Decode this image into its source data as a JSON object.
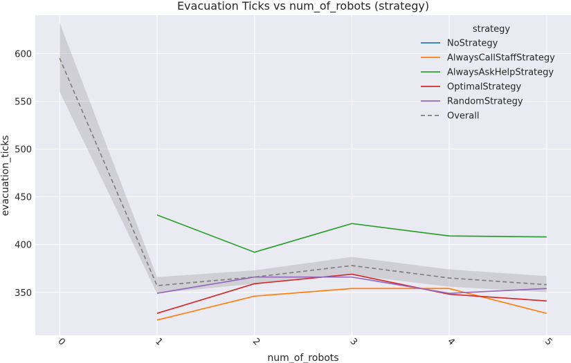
{
  "chart_data": {
    "type": "line",
    "title": "Evacuation Ticks vs num_of_robots (strategy)",
    "xlabel": "num_of_robots",
    "ylabel": "evacuation_ticks",
    "x_ticks": [
      "0",
      "1",
      "2",
      "3",
      "4",
      "5"
    ],
    "y_ticks": [
      350,
      400,
      450,
      500,
      550,
      600
    ],
    "xlim": [
      -0.25,
      5.25
    ],
    "ylim": [
      305,
      640
    ],
    "grid": true,
    "legend": {
      "title": "strategy",
      "placement": "top-right"
    },
    "series": [
      {
        "name": "NoStrategy",
        "color": "#1f77b4",
        "style": "solid",
        "x": [],
        "y": []
      },
      {
        "name": "AlwaysCallStaffStrategy",
        "color": "#ff7f0e",
        "style": "solid",
        "x": [
          1,
          2,
          3,
          4,
          5
        ],
        "y": [
          321,
          346,
          354,
          354,
          328
        ]
      },
      {
        "name": "AlwaysAskHelpStrategy",
        "color": "#2ca02c",
        "style": "solid",
        "x": [
          1,
          2,
          3,
          4,
          5
        ],
        "y": [
          431,
          392,
          422,
          409,
          408
        ]
      },
      {
        "name": "OptimalStrategy",
        "color": "#d62728",
        "style": "solid",
        "x": [
          1,
          2,
          3,
          4,
          5
        ],
        "y": [
          328,
          359,
          369,
          348,
          341
        ]
      },
      {
        "name": "RandomStrategy",
        "color": "#9467bd",
        "style": "solid",
        "x": [
          1,
          2,
          3,
          4,
          5
        ],
        "y": [
          349,
          366,
          366,
          349,
          354
        ]
      },
      {
        "name": "Overall",
        "color": "#808080",
        "style": "dashed",
        "x": [
          0,
          1,
          2,
          3,
          4,
          5
        ],
        "y": [
          595,
          357,
          366,
          378,
          365,
          358
        ]
      }
    ],
    "overall_band": {
      "x": [
        0,
        1,
        2,
        3,
        4,
        5
      ],
      "lower": [
        560,
        349,
        359,
        368,
        356,
        350
      ],
      "upper": [
        632,
        366,
        373,
        387,
        374,
        367
      ]
    }
  }
}
